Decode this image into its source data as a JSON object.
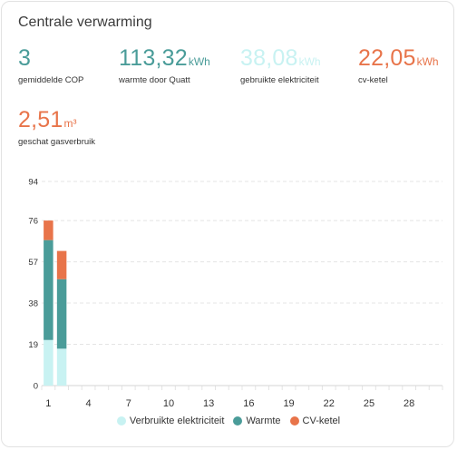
{
  "card": {
    "title": "Centrale verwarming"
  },
  "stats": [
    {
      "value": "3",
      "unit": "",
      "label": "gemiddelde COP",
      "color": "#4a9c99"
    },
    {
      "value": "113,32",
      "unit": "kWh",
      "label": "warmte door Quatt",
      "color": "#4a9c99"
    },
    {
      "value": "38,08",
      "unit": "kWh",
      "label": "gebruikte elektriciteit",
      "color": "#c8f2f2"
    },
    {
      "value": "22,05",
      "unit": "kWh",
      "label": "cv-ketel",
      "color": "#e8744a"
    },
    {
      "value": "2,51",
      "unit": "m³",
      "label": "geschat gasverbruik",
      "color": "#e8744a"
    }
  ],
  "chart_data": {
    "type": "bar",
    "stacked": true,
    "categories": [
      "1",
      "2",
      "3",
      "4",
      "5",
      "6",
      "7",
      "8",
      "9",
      "10",
      "11",
      "12",
      "13",
      "14",
      "15",
      "16",
      "17",
      "18",
      "19",
      "20",
      "21",
      "22",
      "23",
      "24",
      "25",
      "26",
      "27",
      "28",
      "29",
      "30"
    ],
    "x_tick_labels": [
      "1",
      "4",
      "7",
      "10",
      "13",
      "16",
      "19",
      "22",
      "25",
      "28"
    ],
    "y_ticks": [
      0,
      19,
      38,
      57,
      76,
      94
    ],
    "ylim": [
      0,
      94
    ],
    "grid": true,
    "legend_position": "bottom",
    "series": [
      {
        "name": "Verbruikte elektriciteit",
        "color": "#c8f2f2",
        "values": [
          21,
          17,
          null,
          null,
          null,
          null,
          null,
          null,
          null,
          null,
          null,
          null,
          null,
          null,
          null,
          null,
          null,
          null,
          null,
          null,
          null,
          null,
          null,
          null,
          null,
          null,
          null,
          null,
          null,
          null
        ]
      },
      {
        "name": "Warmte",
        "color": "#4a9c99",
        "values": [
          46,
          32,
          null,
          null,
          null,
          null,
          null,
          null,
          null,
          null,
          null,
          null,
          null,
          null,
          null,
          null,
          null,
          null,
          null,
          null,
          null,
          null,
          null,
          null,
          null,
          null,
          null,
          null,
          null,
          null
        ]
      },
      {
        "name": "CV-ketel",
        "color": "#e8744a",
        "values": [
          9,
          13,
          null,
          null,
          null,
          null,
          null,
          null,
          null,
          null,
          null,
          null,
          null,
          null,
          null,
          null,
          null,
          null,
          null,
          null,
          null,
          null,
          null,
          null,
          null,
          null,
          null,
          null,
          null,
          null
        ]
      }
    ]
  }
}
